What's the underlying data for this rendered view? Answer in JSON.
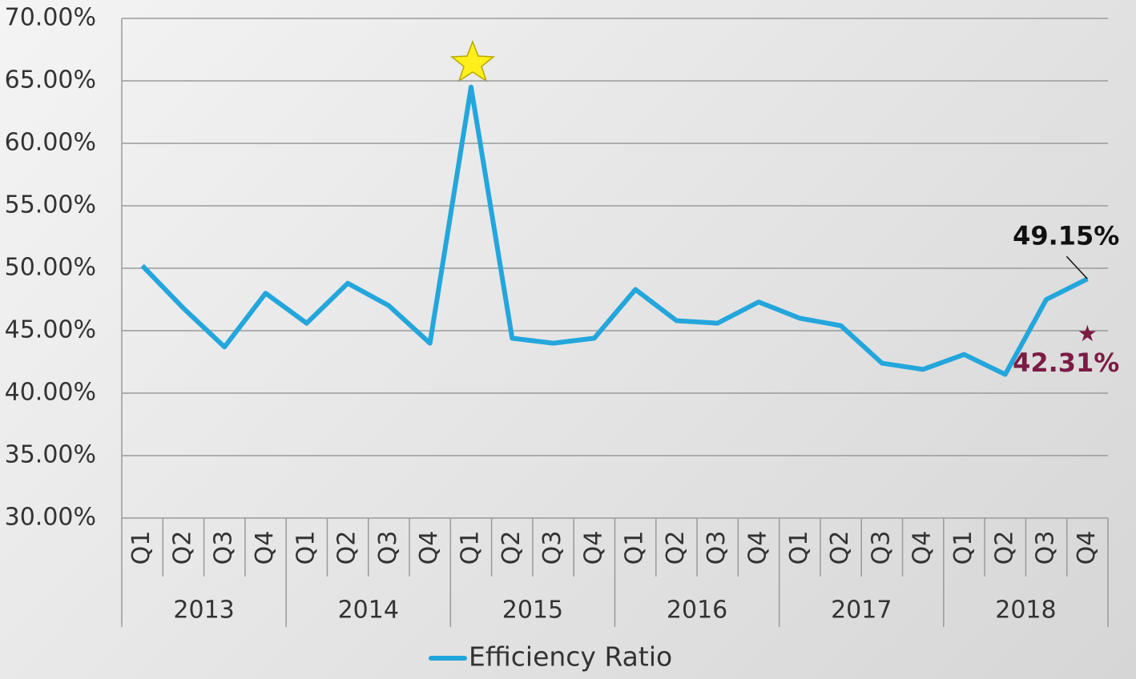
{
  "chart_data": {
    "type": "line",
    "categories": [
      "Q1",
      "Q2",
      "Q3",
      "Q4",
      "Q1",
      "Q2",
      "Q3",
      "Q4",
      "Q1",
      "Q2",
      "Q3",
      "Q4",
      "Q1",
      "Q2",
      "Q3",
      "Q4",
      "Q1",
      "Q2",
      "Q3",
      "Q4",
      "Q1",
      "Q2",
      "Q3",
      "Q4"
    ],
    "category_groups": [
      "2013",
      "2014",
      "2015",
      "2016",
      "2017",
      "2018"
    ],
    "series": [
      {
        "name": "Efficiency Ratio",
        "color": "#23a6dc",
        "values": [
          50.2,
          46.8,
          43.7,
          48.0,
          45.6,
          48.8,
          47.0,
          44.0,
          64.5,
          44.4,
          44.0,
          44.4,
          48.3,
          45.8,
          45.6,
          47.3,
          46.0,
          45.4,
          42.4,
          41.9,
          43.1,
          41.5,
          47.5,
          49.15
        ],
        "value_labels": [
          null,
          null,
          null,
          null,
          null,
          null,
          null,
          null,
          null,
          null,
          null,
          null,
          null,
          null,
          null,
          null,
          null,
          null,
          null,
          null,
          null,
          null,
          null,
          "49.15%"
        ]
      }
    ],
    "annotations": [
      {
        "value": 42.31,
        "label": "42.31%",
        "color": "#7b1c45"
      }
    ],
    "ylim": [
      30,
      70
    ],
    "yticks": [
      {
        "value": 30,
        "label": "30.00%"
      },
      {
        "value": 35,
        "label": "35.00%"
      },
      {
        "value": 40,
        "label": "40.00%"
      },
      {
        "value": 45,
        "label": "45.00%"
      },
      {
        "value": 50,
        "label": "50.00%"
      },
      {
        "value": 55,
        "label": "55.00%"
      },
      {
        "value": 60,
        "label": "60.00%"
      },
      {
        "value": 65,
        "label": "65.00%"
      },
      {
        "value": 70,
        "label": "70.00%"
      }
    ],
    "grid": true,
    "legend": "bottom"
  }
}
